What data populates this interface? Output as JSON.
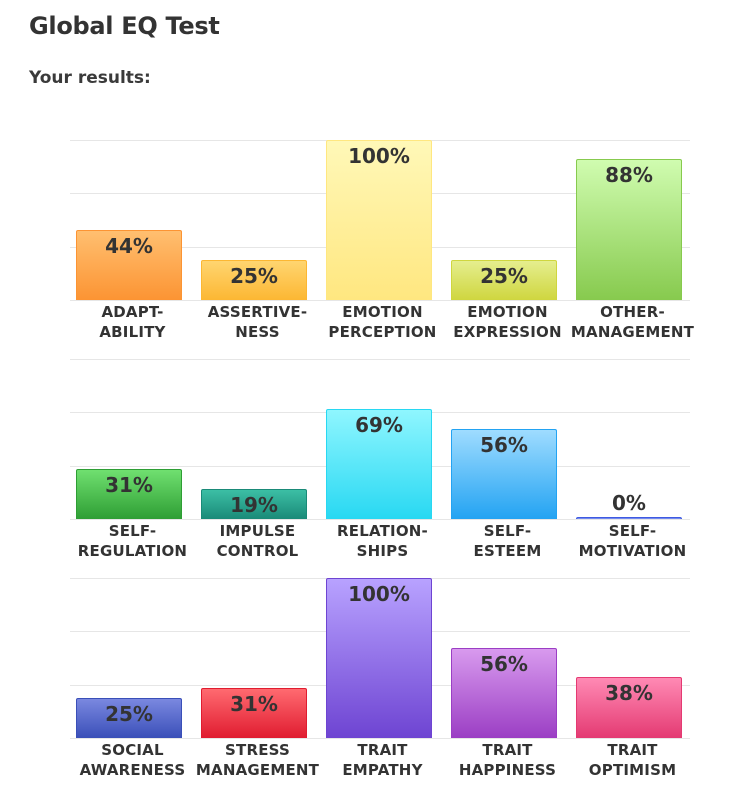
{
  "page": {
    "title": "Global EQ Test",
    "subtitle": "Your results:"
  },
  "chart_data": [
    {
      "type": "bar",
      "ylim": [
        0,
        100
      ],
      "grid": true,
      "categories": [
        [
          "ADAPT-",
          "ABILITY"
        ],
        [
          "ASSERTIVE-",
          "NESS"
        ],
        [
          "EMOTION",
          "PERCEPTION"
        ],
        [
          "EMOTION",
          "EXPRESSION"
        ],
        [
          "OTHER-",
          "MANAGEMENT"
        ]
      ],
      "values": [
        44,
        25,
        100,
        25,
        88
      ],
      "labels": [
        "44%",
        "25%",
        "100%",
        "25%",
        "88%"
      ],
      "colors": [
        [
          "#ffbf70",
          "#fc9433"
        ],
        [
          "#ffd570",
          "#fcb733"
        ],
        [
          "#fff8b8",
          "#ffe780"
        ],
        [
          "#e5ee8e",
          "#cfd63f"
        ],
        [
          "#d0fcb0",
          "#87ca4e"
        ]
      ]
    },
    {
      "type": "bar",
      "ylim": [
        0,
        100
      ],
      "grid": true,
      "categories": [
        [
          "SELF-",
          "REGULATION"
        ],
        [
          "IMPULSE",
          "CONTROL"
        ],
        [
          "RELATION-",
          "SHIPS"
        ],
        [
          "SELF-",
          "ESTEEM"
        ],
        [
          "SELF-",
          "MOTIVATION"
        ]
      ],
      "values": [
        31,
        19,
        69,
        56,
        0
      ],
      "labels": [
        "31%",
        "19%",
        "69%",
        "56%",
        "0%"
      ],
      "colors": [
        [
          "#70e070",
          "#2e9e34"
        ],
        [
          "#3cbfa5",
          "#1a8a78"
        ],
        [
          "#8ff6ff",
          "#28d8f2"
        ],
        [
          "#9fdcff",
          "#23a3f2"
        ],
        [
          "#a5b8ff",
          "#3f5ae0"
        ]
      ]
    },
    {
      "type": "bar",
      "ylim": [
        0,
        100
      ],
      "grid": true,
      "categories": [
        [
          "SOCIAL",
          "AWARENESS"
        ],
        [
          "STRESS",
          "MANAGEMENT"
        ],
        [
          "TRAIT",
          "EMPATHY"
        ],
        [
          "TRAIT",
          "HAPPINESS"
        ],
        [
          "TRAIT",
          "OPTIMISM"
        ]
      ],
      "values": [
        25,
        31,
        100,
        56,
        38
      ],
      "labels": [
        "25%",
        "31%",
        "100%",
        "56%",
        "38%"
      ],
      "colors": [
        [
          "#7a88e0",
          "#3a4fb8"
        ],
        [
          "#ff6a70",
          "#e01c30"
        ],
        [
          "#b8a2ff",
          "#6e44d2"
        ],
        [
          "#d89aee",
          "#9b3ec4"
        ],
        [
          "#ff8ab4",
          "#e43a72"
        ]
      ]
    }
  ]
}
